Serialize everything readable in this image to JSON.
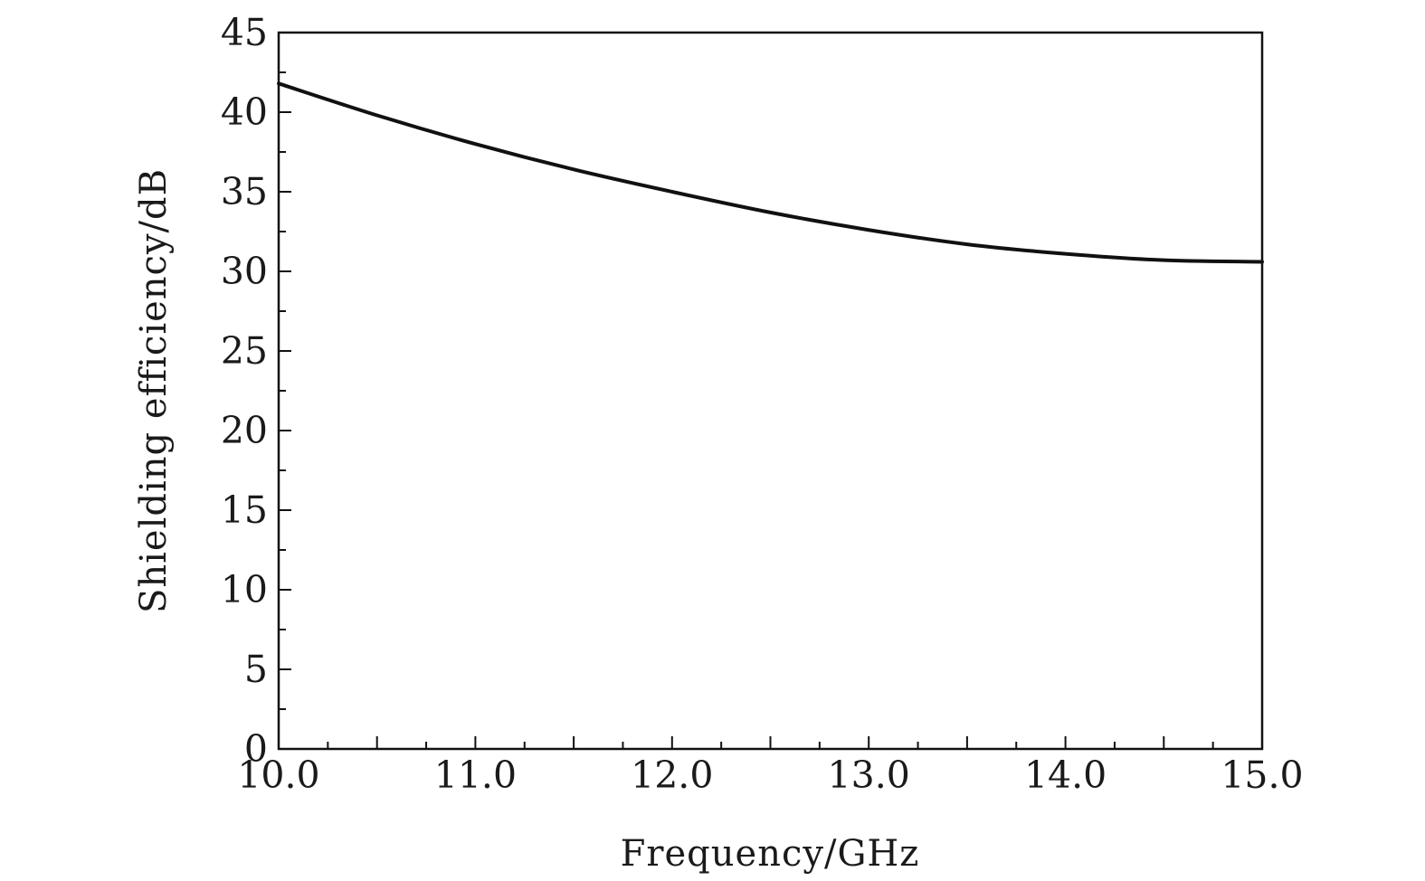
{
  "chart_data": {
    "type": "line",
    "title": "",
    "xlabel": "Frequency/GHz",
    "ylabel": "Shielding efficiency/dB",
    "xlim": [
      10.0,
      15.0
    ],
    "ylim": [
      0,
      45
    ],
    "x_ticks": [
      "10.0",
      "11.0",
      "12.0",
      "13.0",
      "14.0",
      "15.0"
    ],
    "y_ticks": [
      "0",
      "5",
      "10",
      "15",
      "20",
      "25",
      "30",
      "35",
      "40",
      "45"
    ],
    "grid": false,
    "legend": "none",
    "series": [
      {
        "color": "#111111",
        "x": [
          10.0,
          10.5,
          11.0,
          11.5,
          12.0,
          12.5,
          13.0,
          13.5,
          14.0,
          14.5,
          15.0
        ],
        "y": [
          41.8,
          39.8,
          38.0,
          36.4,
          35.0,
          33.7,
          32.6,
          31.7,
          31.1,
          30.7,
          30.6
        ]
      }
    ]
  }
}
